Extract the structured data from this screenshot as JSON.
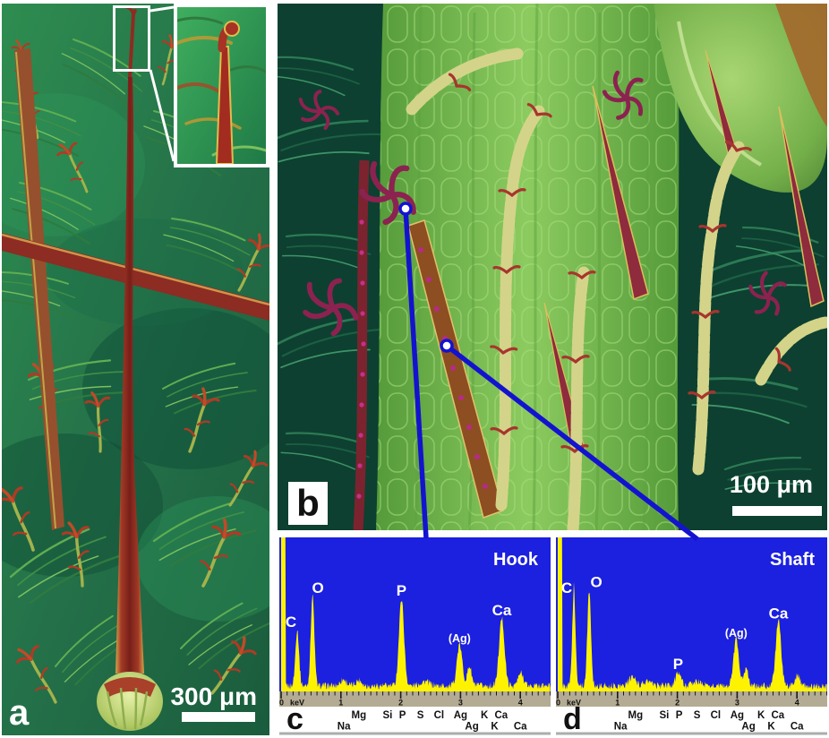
{
  "figure": {
    "panels": {
      "a": {
        "letter": "a",
        "scale_bar": "300 μm"
      },
      "b": {
        "letter": "b",
        "scale_bar": "100 μm"
      },
      "c": {
        "letter": "c"
      },
      "d": {
        "letter": "d"
      }
    },
    "colors": {
      "callout": "#1313cf",
      "spectrum_bg": "#1c20df",
      "spectrum_series": "#fdf300",
      "axis_strip": "#b3ab93"
    }
  },
  "chart_data": [
    {
      "id": "c",
      "type": "area",
      "title": "Hook",
      "x_unit": "keV",
      "x_range": [
        0,
        4.5
      ],
      "tick_labels": [
        "0",
        "1",
        "2",
        "3",
        "4"
      ],
      "plot_bg": "#1c20df",
      "series_color": "#fdf300",
      "axis_strip_color": "#b3ab93",
      "seed": 1,
      "baseline_noise": 0.05,
      "zero_peak_clipped": true,
      "peaks": [
        {
          "label": "C",
          "kev": 0.27,
          "intensity": 0.4,
          "width": 0.03,
          "label_dx": -7
        },
        {
          "label": "O",
          "kev": 0.525,
          "intensity": 0.64,
          "width": 0.03,
          "label_dx": 6
        },
        {
          "label": "",
          "kev": 1.04,
          "intensity": 0.045,
          "width": 0.05
        },
        {
          "label": "",
          "kev": 1.3,
          "intensity": 0.04,
          "width": 0.05
        },
        {
          "label": "P",
          "kev": 2.013,
          "intensity": 0.62,
          "width": 0.042
        },
        {
          "label": "",
          "kev": 2.4,
          "intensity": 0.03,
          "width": 0.08
        },
        {
          "label": "(Ag)",
          "kev": 2.984,
          "intensity": 0.29,
          "width": 0.045
        },
        {
          "label": "",
          "kev": 3.15,
          "intensity": 0.14,
          "width": 0.035
        },
        {
          "label": "Ca",
          "kev": 3.69,
          "intensity": 0.48,
          "width": 0.045
        },
        {
          "label": "",
          "kev": 4.01,
          "intensity": 0.09,
          "width": 0.045
        }
      ],
      "element_markers": {
        "row1": [
          {
            "label": "Mg",
            "kev": 1.3
          },
          {
            "label": "Si",
            "kev": 1.78
          },
          {
            "label": "P",
            "kev": 2.03
          },
          {
            "label": "S",
            "kev": 2.33
          },
          {
            "label": "Cl",
            "kev": 2.64
          },
          {
            "label": "Ag",
            "kev": 3.0
          },
          {
            "label": "K",
            "kev": 3.4
          },
          {
            "label": "Ca",
            "kev": 3.68
          }
        ],
        "row2": [
          {
            "label": "Na",
            "kev": 1.05
          },
          {
            "label": "Ag",
            "kev": 3.19
          },
          {
            "label": "K",
            "kev": 3.57
          },
          {
            "label": "Ca",
            "kev": 4.0
          }
        ]
      }
    },
    {
      "id": "d",
      "type": "area",
      "title": "Shaft",
      "x_unit": "keV",
      "x_range": [
        0,
        4.5
      ],
      "tick_labels": [
        "0",
        "1",
        "2",
        "3",
        "4"
      ],
      "plot_bg": "#1c20df",
      "series_color": "#fdf300",
      "axis_strip_color": "#b3ab93",
      "seed": 2,
      "baseline_noise": 0.05,
      "zero_peak_clipped": true,
      "peaks": [
        {
          "label": "C",
          "kev": 0.27,
          "intensity": 0.64,
          "width": 0.028,
          "label_dx": -8
        },
        {
          "label": "",
          "kev": 0.27,
          "intensity": 0.1,
          "width": 0.006
        },
        {
          "label": "O",
          "kev": 0.525,
          "intensity": 0.68,
          "width": 0.03,
          "label_dx": 8
        },
        {
          "label": "",
          "kev": 1.25,
          "intensity": 0.06,
          "width": 0.06
        },
        {
          "label": "",
          "kev": 1.5,
          "intensity": 0.03,
          "width": 0.06
        },
        {
          "label": "P",
          "kev": 2.013,
          "intensity": 0.1,
          "width": 0.045
        },
        {
          "label": "",
          "kev": 2.33,
          "intensity": 0.03,
          "width": 0.07
        },
        {
          "label": "(Ag)",
          "kev": 2.984,
          "intensity": 0.33,
          "width": 0.045
        },
        {
          "label": "",
          "kev": 3.15,
          "intensity": 0.12,
          "width": 0.035
        },
        {
          "label": "Ca",
          "kev": 3.69,
          "intensity": 0.46,
          "width": 0.045
        },
        {
          "label": "",
          "kev": 4.01,
          "intensity": 0.07,
          "width": 0.045
        }
      ],
      "element_markers": {
        "row1": [
          {
            "label": "Mg",
            "kev": 1.3
          },
          {
            "label": "Si",
            "kev": 1.78
          },
          {
            "label": "P",
            "kev": 2.03
          },
          {
            "label": "S",
            "kev": 2.33
          },
          {
            "label": "Cl",
            "kev": 2.64
          },
          {
            "label": "Ag",
            "kev": 3.0
          },
          {
            "label": "K",
            "kev": 3.4
          },
          {
            "label": "Ca",
            "kev": 3.68
          }
        ],
        "row2": [
          {
            "label": "Na",
            "kev": 1.05
          },
          {
            "label": "Ag",
            "kev": 3.19
          },
          {
            "label": "K",
            "kev": 3.57
          },
          {
            "label": "Ca",
            "kev": 4.0
          }
        ]
      }
    }
  ]
}
